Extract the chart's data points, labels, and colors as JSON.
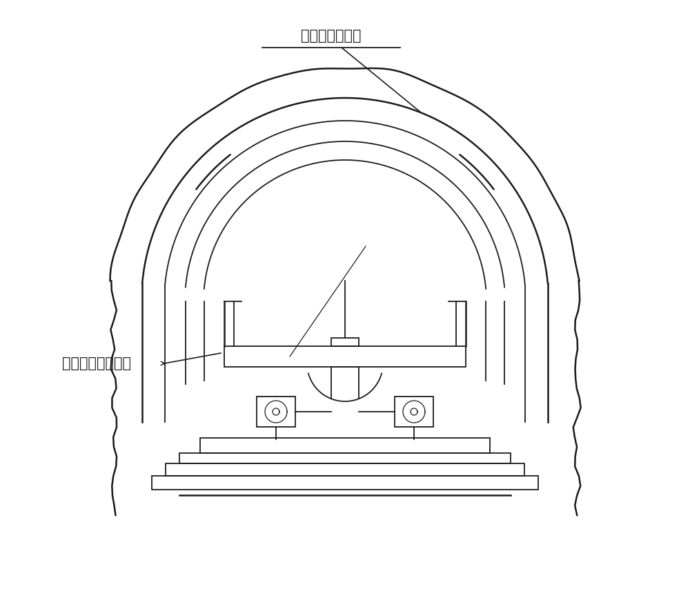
{
  "label1": "收缩边顶拱模板",
  "label2": "手动液压模板台车",
  "bg_color": "#ffffff",
  "line_color": "#1a1a1a",
  "lw_thick": 1.8,
  "lw_med": 1.3,
  "lw_thin": 0.9,
  "font_size": 15,
  "fig_w": 10.0,
  "fig_h": 8.57
}
